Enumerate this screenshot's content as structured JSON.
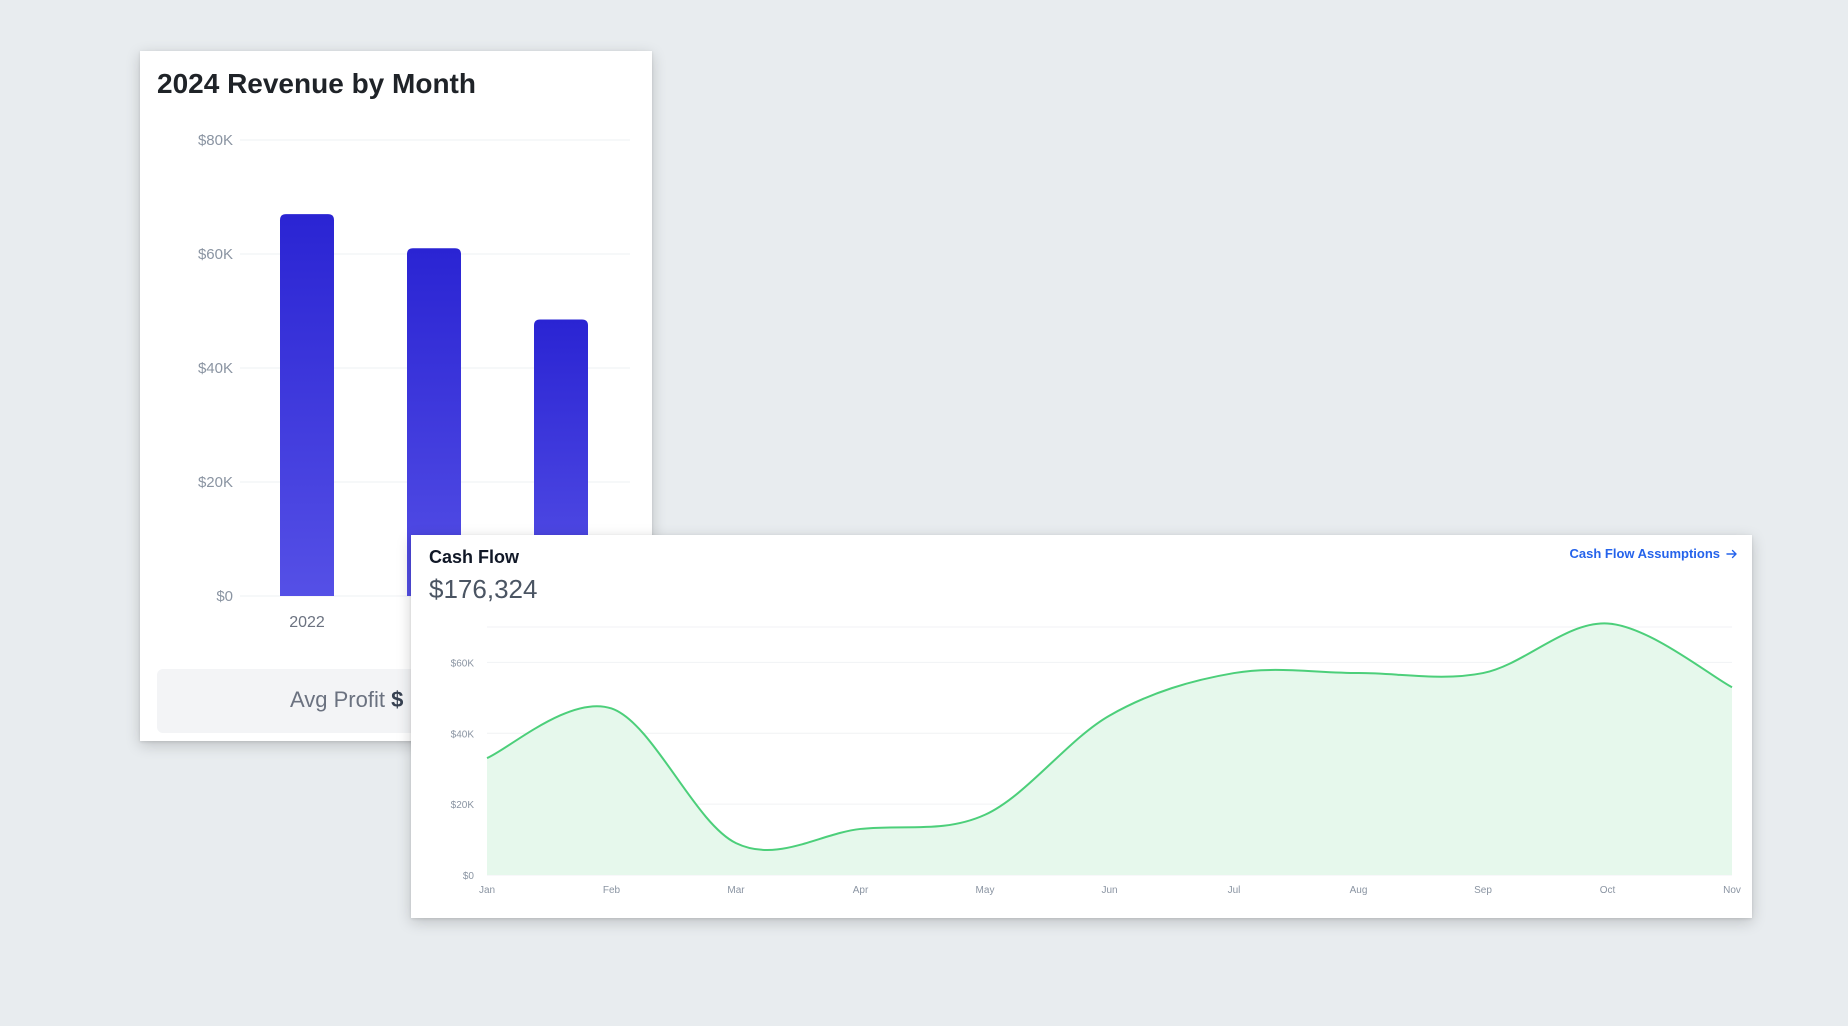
{
  "revenue_card": {
    "title": "2024 Revenue by Month",
    "footer_label": "Avg Profit",
    "footer_value": "$"
  },
  "cashflow_card": {
    "title": "Cash Flow",
    "total": "$176,324",
    "link_label": "Cash Flow Assumptions",
    "link_icon": "arrow-right-icon"
  },
  "chart_data": [
    {
      "type": "bar",
      "title": "2024 Revenue by Month",
      "categories": [
        "2022",
        "",
        ""
      ],
      "values": [
        67000,
        61000,
        48500
      ],
      "ylim": [
        0,
        80000
      ],
      "yticks": [
        "$0",
        "$20K",
        "$40K",
        "$60K",
        "$80K"
      ],
      "grid": true,
      "bar_color_top": "#2a24d3",
      "bar_color_bottom": "#5550e6"
    },
    {
      "type": "area",
      "title": "Cash Flow",
      "categories": [
        "Jan",
        "Feb",
        "Mar",
        "Apr",
        "May",
        "Jun",
        "Jul",
        "Aug",
        "Sep",
        "Oct",
        "Nov"
      ],
      "values": [
        33000,
        47000,
        9000,
        13000,
        17000,
        45000,
        57000,
        57000,
        57000,
        71000,
        53000
      ],
      "ylim": [
        0,
        70000
      ],
      "yticks": [
        "$0",
        "$20K",
        "$40K",
        "$60K"
      ],
      "grid": true,
      "line_color": "#4ccf7a",
      "fill_color": "#e6f8ec"
    }
  ]
}
